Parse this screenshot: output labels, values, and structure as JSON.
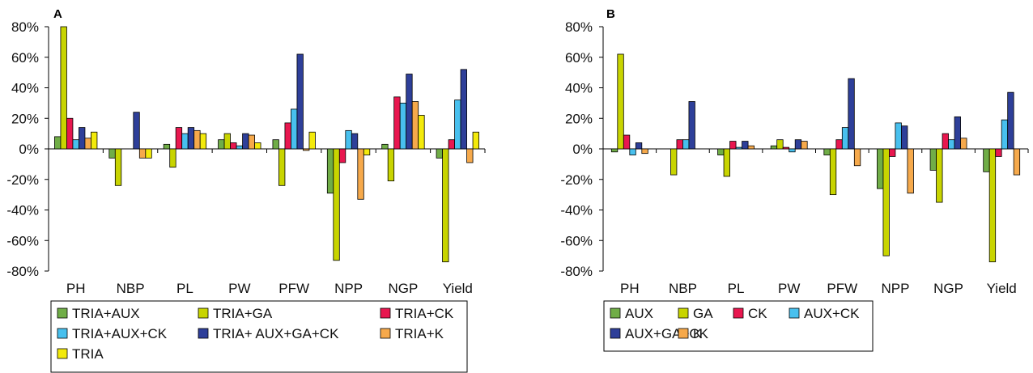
{
  "chart_data": [
    {
      "panel": "A",
      "type": "bar",
      "categories": [
        "PH",
        "NBP",
        "PL",
        "PW",
        "PFW",
        "NPP",
        "NGP",
        "Yield"
      ],
      "y_ticks": [
        "80%",
        "60%",
        "40%",
        "20%",
        "0%",
        "-20%",
        "-40%",
        "-60%",
        "-80%"
      ],
      "ylim": [
        -80,
        80
      ],
      "grid": false,
      "legend_position": "bottom",
      "series": [
        {
          "name": "TRIA+AUX",
          "color": "#70ad47",
          "values": [
            8,
            -6,
            3,
            6,
            6,
            -29,
            3,
            -6
          ]
        },
        {
          "name": "TRIA+GA",
          "color": "#c8d400",
          "values": [
            80,
            -24,
            -12,
            10,
            -24,
            -73,
            -21,
            -74
          ]
        },
        {
          "name": "TRIA+CK",
          "color": "#e8174f",
          "values": [
            20,
            0,
            14,
            4,
            17,
            -9,
            34,
            6
          ]
        },
        {
          "name": "TRIA+AUX+CK",
          "color": "#48c0ee",
          "values": [
            6,
            0,
            10,
            2,
            26,
            12,
            30,
            32
          ]
        },
        {
          "name": "TRIA+ AUX+GA+CK",
          "color": "#2e3f99",
          "values": [
            14,
            24,
            14,
            10,
            62,
            10,
            49,
            52
          ]
        },
        {
          "name": "TRIA+K",
          "color": "#f6a94b",
          "values": [
            7,
            -6,
            12,
            9,
            -1,
            -33,
            31,
            -9
          ]
        },
        {
          "name": "TRIA",
          "color": "#f3ea0b",
          "values": [
            11,
            -6,
            10,
            4,
            11,
            -4,
            22,
            11
          ]
        }
      ]
    },
    {
      "panel": "B",
      "type": "bar",
      "categories": [
        "PH",
        "NBP",
        "PL",
        "PW",
        "PFW",
        "NPP",
        "NGP",
        "Yield"
      ],
      "y_ticks": [
        "80%",
        "60%",
        "40%",
        "20%",
        "0%",
        "-20%",
        "-40%",
        "-60%",
        "-80%"
      ],
      "ylim": [
        -80,
        80
      ],
      "grid": false,
      "legend_position": "bottom",
      "series": [
        {
          "name": "AUX",
          "color": "#70ad47",
          "values": [
            -2,
            0,
            -4,
            2,
            -4,
            -26,
            -14,
            -15
          ]
        },
        {
          "name": "GA",
          "color": "#c8d400",
          "values": [
            62,
            -17,
            -18,
            6,
            -30,
            -70,
            -35,
            -74
          ]
        },
        {
          "name": "CK",
          "color": "#e8174f",
          "values": [
            9,
            6,
            5,
            1,
            6,
            -5,
            10,
            -5
          ]
        },
        {
          "name": "AUX+CK",
          "color": "#48c0ee",
          "values": [
            -4,
            6,
            1,
            -2,
            14,
            17,
            6,
            19
          ]
        },
        {
          "name": "AUX+GA+CK",
          "color": "#2e3f99",
          "values": [
            4,
            31,
            5,
            6,
            46,
            15,
            21,
            37
          ]
        },
        {
          "name": "K",
          "color": "#f6a94b",
          "values": [
            -3,
            0,
            2,
            5,
            -11,
            -29,
            7,
            -17
          ]
        }
      ]
    }
  ]
}
